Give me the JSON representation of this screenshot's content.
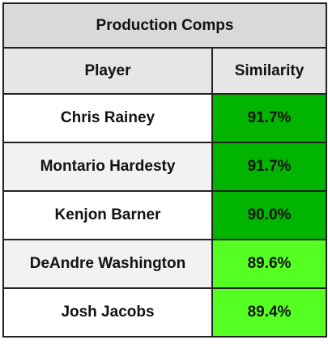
{
  "table": {
    "title": "Production Comps",
    "headers": {
      "player": "Player",
      "similarity": "Similarity"
    },
    "rows": [
      {
        "player": "Chris Rainey",
        "similarity": "91.7%",
        "color": "#00b400"
      },
      {
        "player": "Montario Hardesty",
        "similarity": "91.7%",
        "color": "#00b400"
      },
      {
        "player": "Kenjon Barner",
        "similarity": "90.0%",
        "color": "#00b400"
      },
      {
        "player": "DeAndre Washington",
        "similarity": "89.6%",
        "color": "#55ff22"
      },
      {
        "player": "Josh Jacobs",
        "similarity": "89.4%",
        "color": "#55ff22"
      }
    ]
  }
}
